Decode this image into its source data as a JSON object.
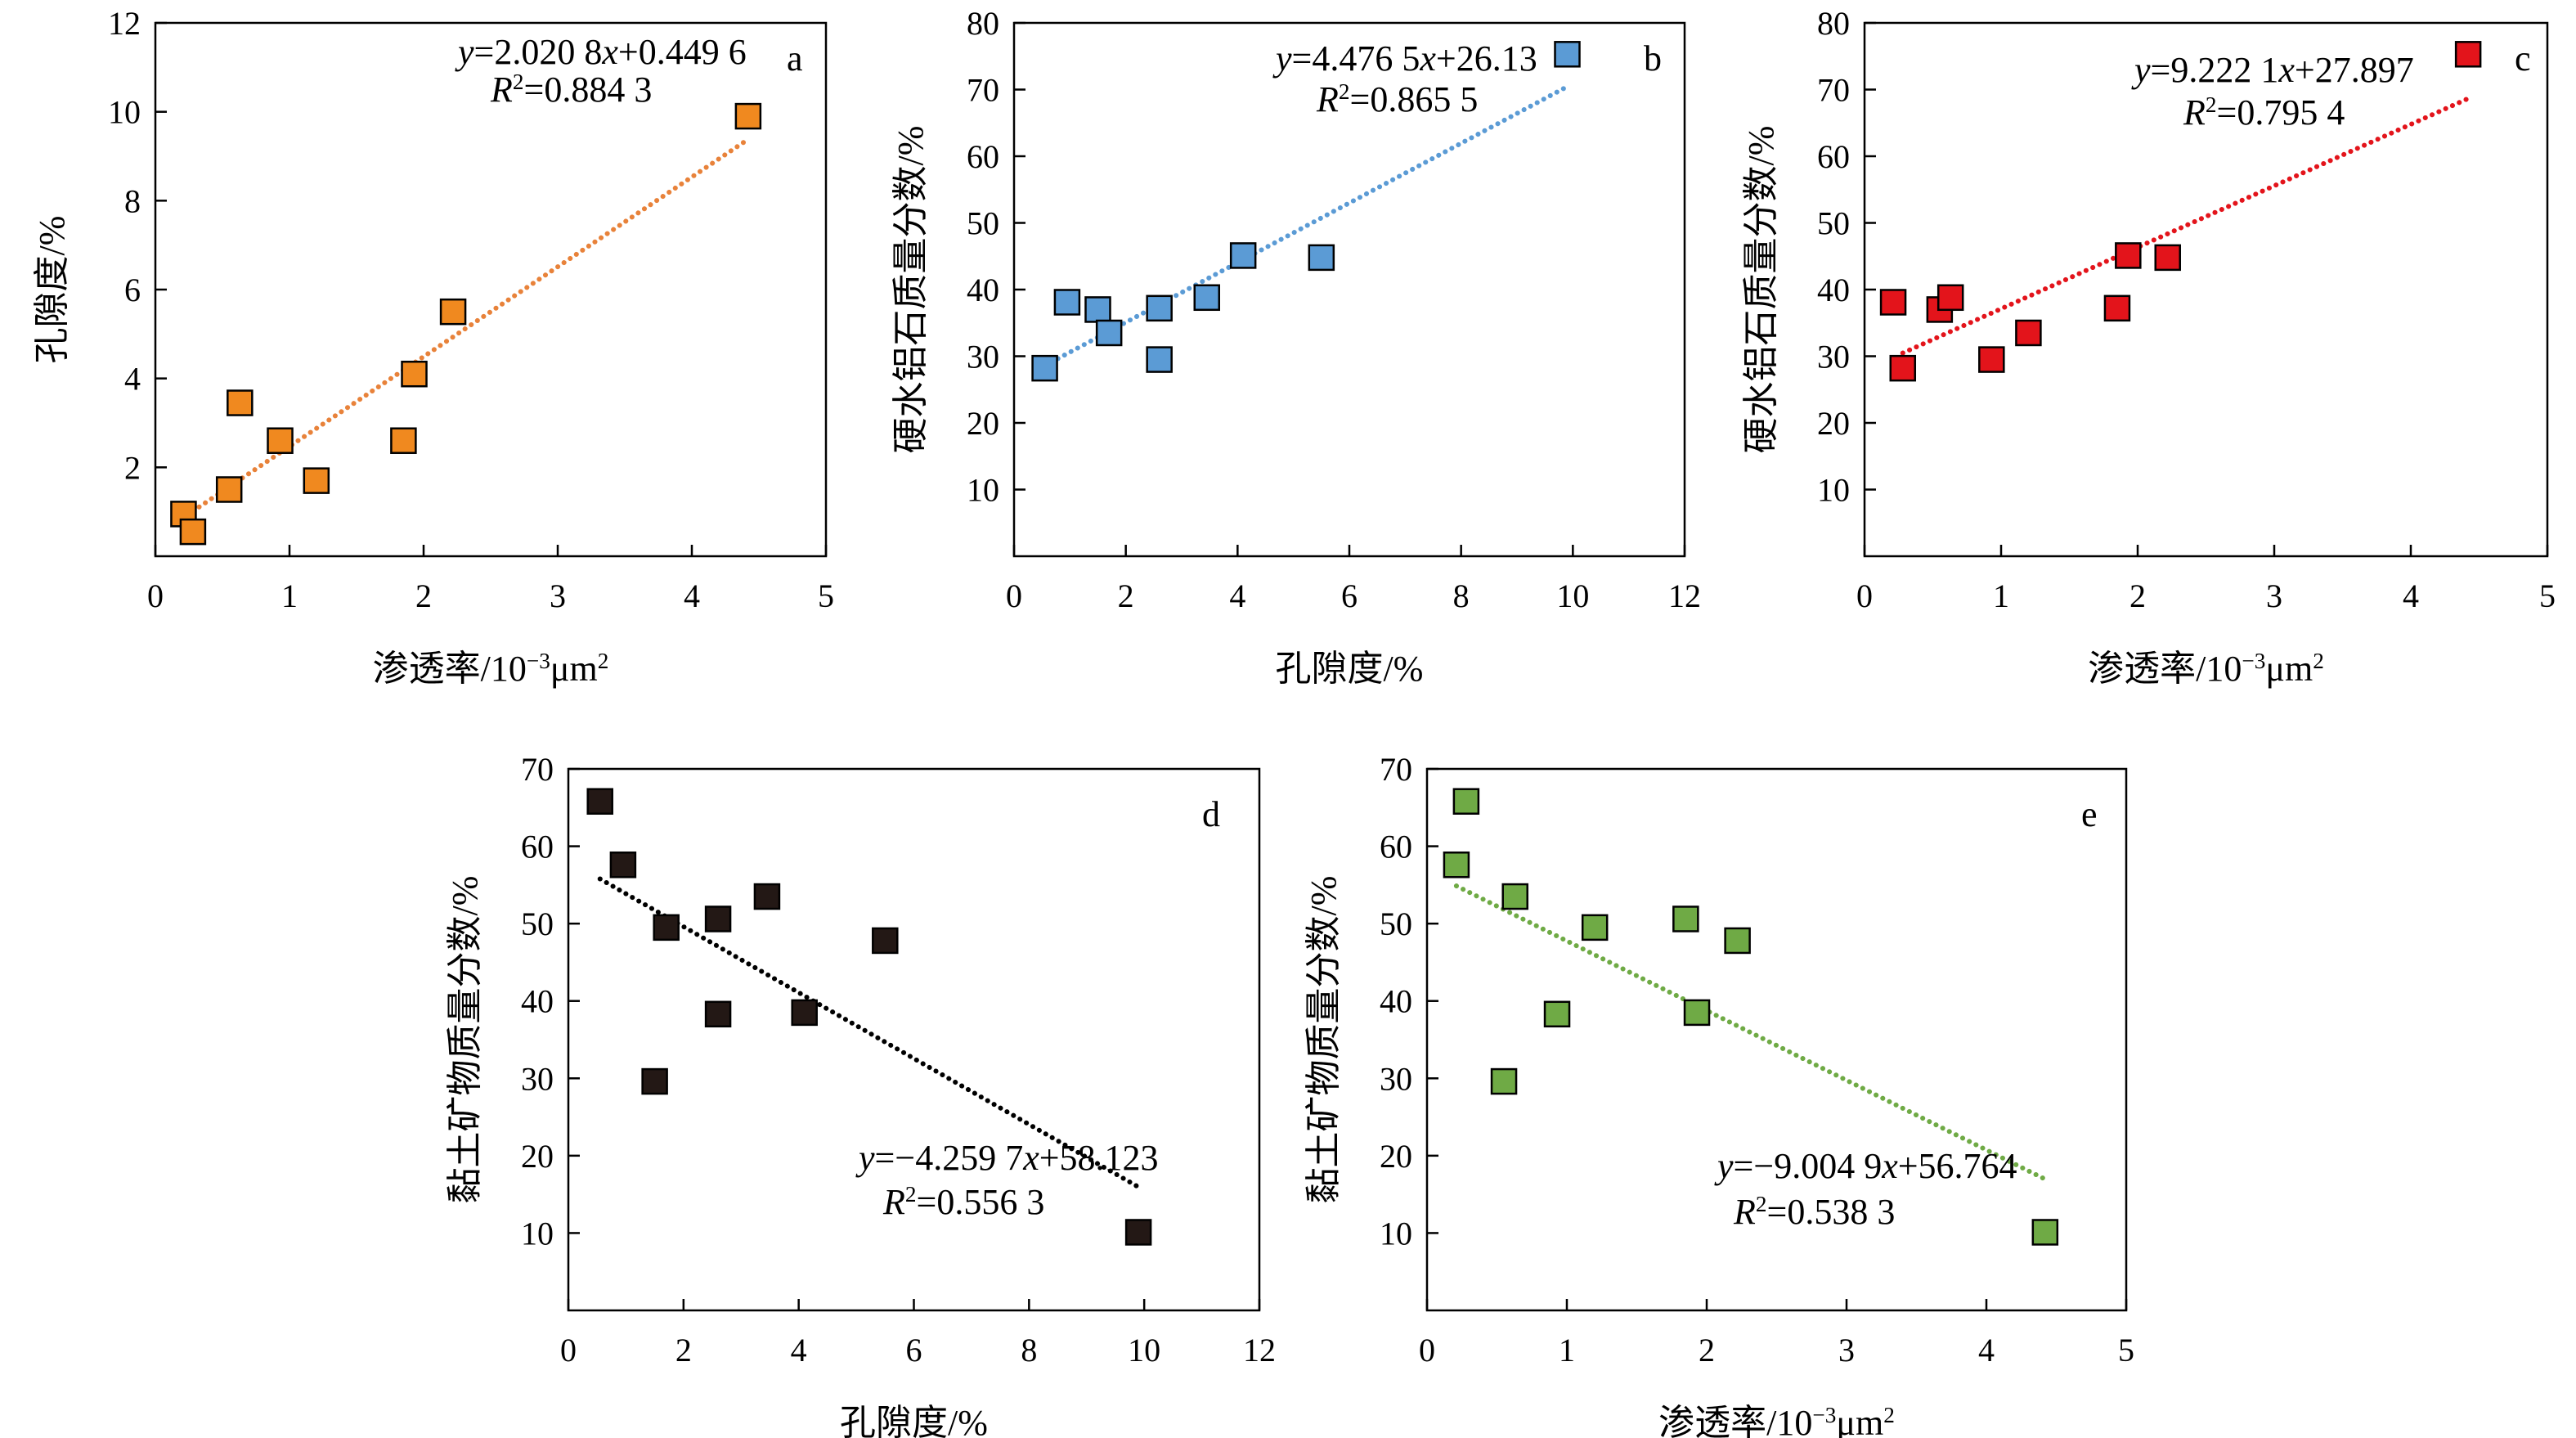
{
  "chart_data": [
    {
      "id": "a",
      "type": "scatter",
      "panel_label": "a",
      "xlabel": "渗透率/10⁻³μm²",
      "ylabel": "孔隙度/%",
      "xlim": [
        0,
        5
      ],
      "ylim": [
        0,
        12
      ],
      "xticks": [
        "0",
        "1",
        "2",
        "3",
        "4",
        "5"
      ],
      "yticks": [
        "2",
        "4",
        "6",
        "8",
        "10",
        "12"
      ],
      "marker_color": "#F0891F",
      "trend_color": "#E8823A",
      "equation": "y=2.020 8x+0.449 6",
      "r2": "R²=0.884 3",
      "trend": {
        "slope": 2.0208,
        "intercept": 0.4496,
        "x_range": [
          0.28,
          4.42
        ]
      },
      "points": [
        {
          "x": 0.21,
          "y": 0.95
        },
        {
          "x": 0.28,
          "y": 0.55
        },
        {
          "x": 0.55,
          "y": 1.5
        },
        {
          "x": 0.63,
          "y": 3.45
        },
        {
          "x": 0.93,
          "y": 2.6
        },
        {
          "x": 1.2,
          "y": 1.7
        },
        {
          "x": 1.85,
          "y": 2.6
        },
        {
          "x": 1.93,
          "y": 4.1
        },
        {
          "x": 2.22,
          "y": 5.5
        },
        {
          "x": 4.42,
          "y": 9.9
        }
      ]
    },
    {
      "id": "b",
      "type": "scatter",
      "panel_label": "b",
      "xlabel": "孔隙度/%",
      "ylabel": "硬水铝石质量分数/%",
      "xlim": [
        0,
        12
      ],
      "ylim": [
        0,
        80
      ],
      "xticks": [
        "0",
        "2",
        "4",
        "6",
        "8",
        "10",
        "12"
      ],
      "yticks": [
        "10",
        "20",
        "30",
        "40",
        "50",
        "60",
        "70",
        "80"
      ],
      "marker_color": "#5B9BD5",
      "trend_color": "#5B9BD5",
      "equation": "y=4.476 5x+26.13",
      "r2": "R²=0.865 5",
      "trend": {
        "slope": 4.4765,
        "intercept": 26.13,
        "x_range": [
          0.55,
          9.9
        ]
      },
      "points": [
        {
          "x": 0.55,
          "y": 28.2
        },
        {
          "x": 0.95,
          "y": 38.1
        },
        {
          "x": 1.5,
          "y": 37.0
        },
        {
          "x": 1.7,
          "y": 33.5
        },
        {
          "x": 2.6,
          "y": 37.2
        },
        {
          "x": 2.6,
          "y": 29.5
        },
        {
          "x": 3.45,
          "y": 38.8
        },
        {
          "x": 4.1,
          "y": 45.1
        },
        {
          "x": 5.5,
          "y": 44.8
        },
        {
          "x": 9.9,
          "y": 75.3
        }
      ]
    },
    {
      "id": "c",
      "type": "scatter",
      "panel_label": "c",
      "xlabel": "渗透率/10⁻³μm²",
      "ylabel": "硬水铝石质量分数/%",
      "xlim": [
        0,
        5
      ],
      "ylim": [
        0,
        80
      ],
      "xticks": [
        "0",
        "1",
        "2",
        "3",
        "4",
        "5"
      ],
      "yticks": [
        "10",
        "20",
        "30",
        "40",
        "50",
        "60",
        "70",
        "80"
      ],
      "marker_color": "#E3141B",
      "trend_color": "#E3141B",
      "equation": "y=9.222 1x+27.897",
      "r2": "R²=0.795 4",
      "trend": {
        "slope": 9.2221,
        "intercept": 27.897,
        "x_range": [
          0.28,
          4.42
        ]
      },
      "points": [
        {
          "x": 0.21,
          "y": 38.1
        },
        {
          "x": 0.28,
          "y": 28.2
        },
        {
          "x": 0.55,
          "y": 37.0
        },
        {
          "x": 0.63,
          "y": 38.8
        },
        {
          "x": 0.93,
          "y": 29.5
        },
        {
          "x": 1.2,
          "y": 33.5
        },
        {
          "x": 1.85,
          "y": 37.2
        },
        {
          "x": 1.93,
          "y": 45.1
        },
        {
          "x": 2.22,
          "y": 44.8
        },
        {
          "x": 4.42,
          "y": 75.3
        }
      ]
    },
    {
      "id": "d",
      "type": "scatter",
      "panel_label": "d",
      "xlabel": "孔隙度/%",
      "ylabel": "黏土矿物质量分数/%",
      "xlim": [
        0,
        12
      ],
      "ylim": [
        0,
        70
      ],
      "xticks": [
        "0",
        "2",
        "4",
        "6",
        "8",
        "10",
        "12"
      ],
      "yticks": [
        "10",
        "20",
        "30",
        "40",
        "50",
        "60",
        "70"
      ],
      "marker_color": "#231815",
      "trend_color": "#000000",
      "equation": "y=−4.259 7x+58.123",
      "r2": "R²=0.556 3",
      "trend": {
        "slope": -4.2597,
        "intercept": 58.123,
        "x_range": [
          0.55,
          9.9
        ]
      },
      "points": [
        {
          "x": 0.55,
          "y": 65.8
        },
        {
          "x": 0.95,
          "y": 57.6
        },
        {
          "x": 1.5,
          "y": 29.6
        },
        {
          "x": 1.7,
          "y": 49.5
        },
        {
          "x": 2.6,
          "y": 50.6
        },
        {
          "x": 2.6,
          "y": 38.3
        },
        {
          "x": 3.45,
          "y": 53.5
        },
        {
          "x": 4.1,
          "y": 38.5
        },
        {
          "x": 5.5,
          "y": 47.8
        },
        {
          "x": 9.9,
          "y": 10.1
        }
      ]
    },
    {
      "id": "e",
      "type": "scatter",
      "panel_label": "e",
      "xlabel": "渗透率/10⁻³μm²",
      "ylabel": "黏土矿物质量分数/%",
      "xlim": [
        0,
        5
      ],
      "ylim": [
        0,
        70
      ],
      "xticks": [
        "0",
        "1",
        "2",
        "3",
        "4",
        "5"
      ],
      "yticks": [
        "10",
        "20",
        "30",
        "40",
        "50",
        "60",
        "70"
      ],
      "marker_color": "#6FAA45",
      "trend_color": "#6FAA45",
      "equation": "y=−9.004 9x+56.764",
      "r2": "R²=0.538 3",
      "trend": {
        "slope": -9.0049,
        "intercept": 56.764,
        "x_range": [
          0.21,
          4.42
        ]
      },
      "points": [
        {
          "x": 0.21,
          "y": 57.6
        },
        {
          "x": 0.28,
          "y": 65.8
        },
        {
          "x": 0.55,
          "y": 29.6
        },
        {
          "x": 0.63,
          "y": 53.5
        },
        {
          "x": 0.93,
          "y": 38.3
        },
        {
          "x": 1.2,
          "y": 49.5
        },
        {
          "x": 1.85,
          "y": 50.6
        },
        {
          "x": 1.93,
          "y": 38.5
        },
        {
          "x": 2.22,
          "y": 47.8
        },
        {
          "x": 4.42,
          "y": 10.1
        }
      ]
    }
  ]
}
